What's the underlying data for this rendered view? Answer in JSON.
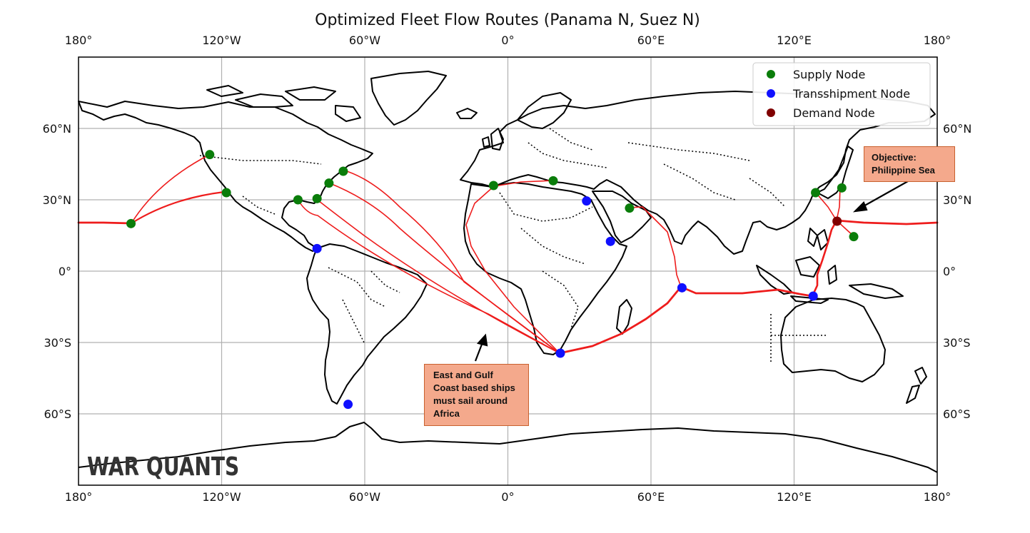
{
  "title": "Optimized Fleet Flow Routes (Panama N, Suez N)",
  "axes": {
    "x_ticks": [
      "180°",
      "120°W",
      "60°W",
      "0°",
      "60°E",
      "120°E",
      "180°"
    ],
    "y_ticks": [
      "60°N",
      "30°N",
      "0°",
      "30°S",
      "60°S"
    ],
    "x_range": [
      -180,
      180
    ],
    "y_range": [
      -90,
      90
    ],
    "grid": true
  },
  "legend": {
    "items": [
      {
        "label": "Supply Node",
        "color": "#0a7d0a"
      },
      {
        "label": "Transshipment Node",
        "color": "#1010ff"
      },
      {
        "label": "Demand Node",
        "color": "#800000"
      }
    ],
    "position": "top-right"
  },
  "colors": {
    "route": "#ee1c1c",
    "coast": "#000000",
    "border": "#000000",
    "grid": "#b0b0b0",
    "callout_fill": "#f4a98c",
    "callout_border": "#c8612e"
  },
  "nodes": {
    "supply": [
      {
        "lon": -158,
        "lat": 20
      },
      {
        "lon": -125,
        "lat": 49
      },
      {
        "lon": -118,
        "lat": 33
      },
      {
        "lon": -88,
        "lat": 30
      },
      {
        "lon": -80,
        "lat": 30.5
      },
      {
        "lon": -75,
        "lat": 37
      },
      {
        "lon": -69,
        "lat": 42
      },
      {
        "lon": -6,
        "lat": 36
      },
      {
        "lon": 19,
        "lat": 38
      },
      {
        "lon": 51,
        "lat": 26.5
      },
      {
        "lon": 129,
        "lat": 33
      },
      {
        "lon": 140,
        "lat": 35
      },
      {
        "lon": 145,
        "lat": 14.5
      }
    ],
    "transshipment": [
      {
        "lon": -80,
        "lat": 9.5
      },
      {
        "lon": -67,
        "lat": -56
      },
      {
        "lon": 22,
        "lat": -34.5
      },
      {
        "lon": 33,
        "lat": 29.5
      },
      {
        "lon": 43,
        "lat": 12.5
      },
      {
        "lon": 73,
        "lat": -7
      },
      {
        "lon": 128,
        "lat": -10.5
      }
    ],
    "demand": [
      {
        "lon": 138,
        "lat": 21
      }
    ]
  },
  "annotations": {
    "objective": "Objective: Philippine Sea",
    "africa": "East and Gulf Coast based ships must sail around Africa"
  },
  "watermark": "WAR QUANTS"
}
